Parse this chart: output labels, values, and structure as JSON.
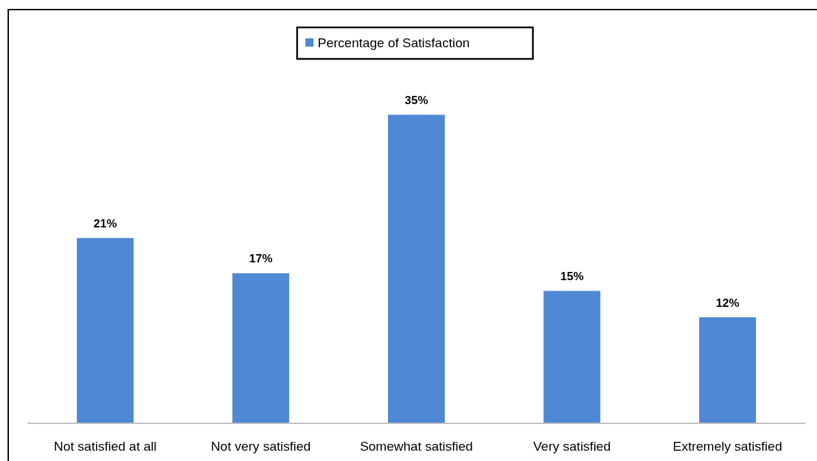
{
  "chart_data": {
    "type": "bar",
    "categories": [
      "Not satisfied at all",
      "Not very satisfied",
      "Somewhat satisfied",
      "Very satisfied",
      "Extremely satisfied"
    ],
    "series": [
      {
        "name": "Percentage of Satisfaction",
        "color": "#4f88d3",
        "values": [
          21,
          17,
          35,
          15,
          12
        ],
        "value_labels": [
          "21%",
          "17%",
          "35%",
          "15%",
          "12%"
        ]
      }
    ],
    "legend": "top",
    "grid": false
  }
}
